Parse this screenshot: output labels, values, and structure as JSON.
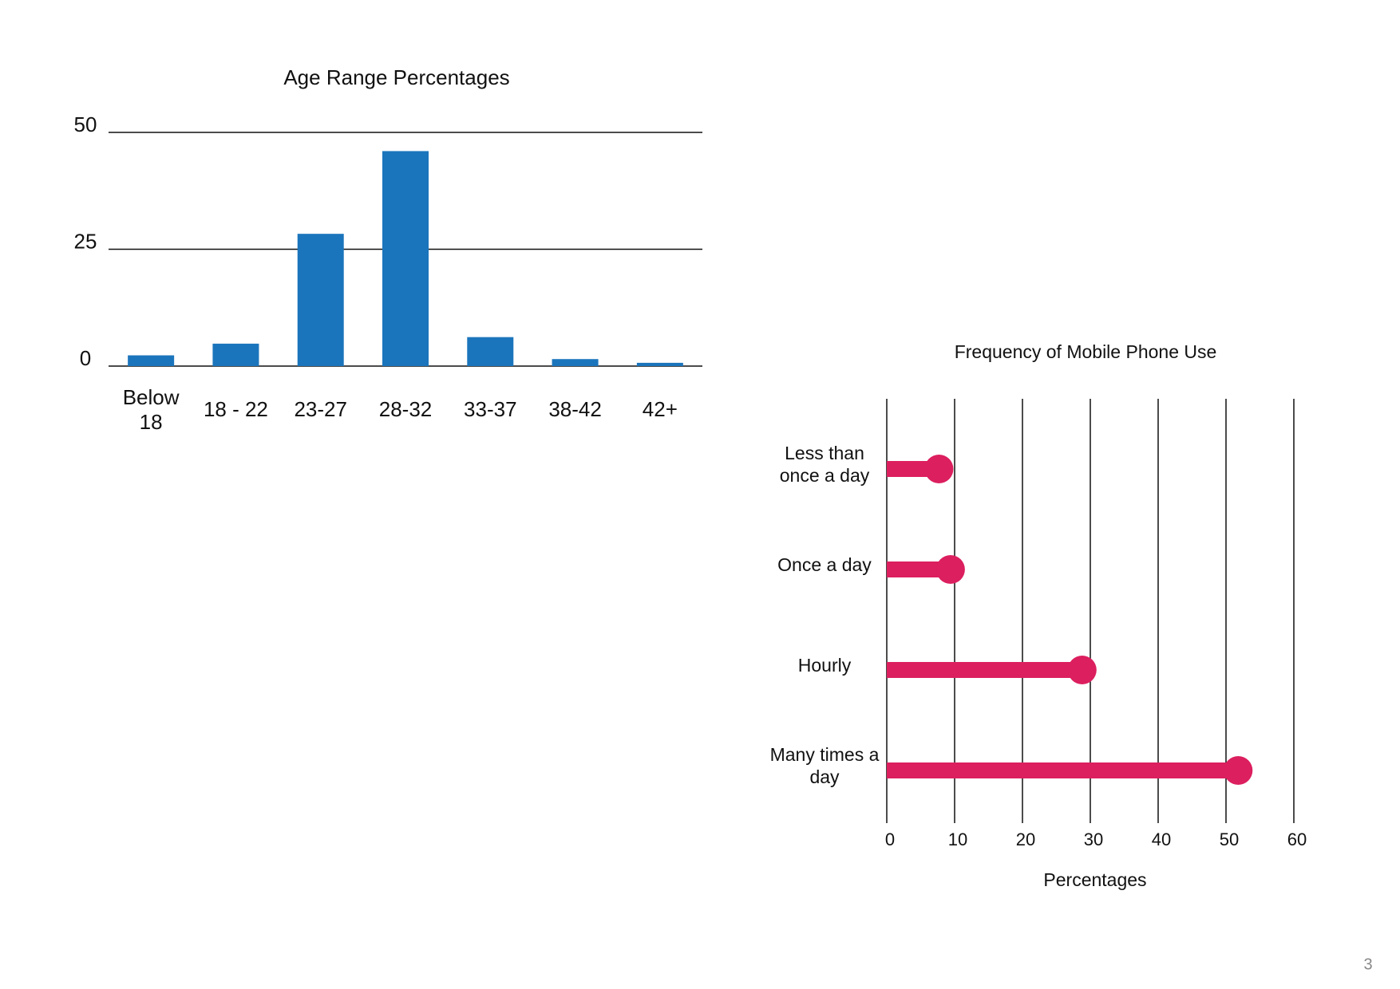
{
  "chart_data": [
    {
      "type": "bar",
      "title": "Age Range Percentages",
      "categories": [
        "Below 18",
        "18 - 22",
        "23-27",
        "28-32",
        "33-37",
        "38-42",
        "42+"
      ],
      "values": [
        2.3,
        4.8,
        28.3,
        46,
        6.2,
        1.5,
        0.7
      ],
      "color": "#1b75bc",
      "ylim": [
        0,
        50
      ],
      "yticks": [
        0,
        25,
        50
      ],
      "grid": true
    },
    {
      "type": "lollipop",
      "title": "Frequency of Mobile Phone Use",
      "categories": [
        "Less than once a day",
        "Once a day",
        "Hourly",
        "Many times a day"
      ],
      "values": [
        7.7,
        9.4,
        28.8,
        51.8
      ],
      "color": "#dc1f5e",
      "xlabel": "Percentages",
      "xlim": [
        0,
        60
      ],
      "xticks": [
        0,
        10,
        20,
        30,
        40,
        50,
        60
      ],
      "grid": true
    }
  ],
  "page_number": "3"
}
